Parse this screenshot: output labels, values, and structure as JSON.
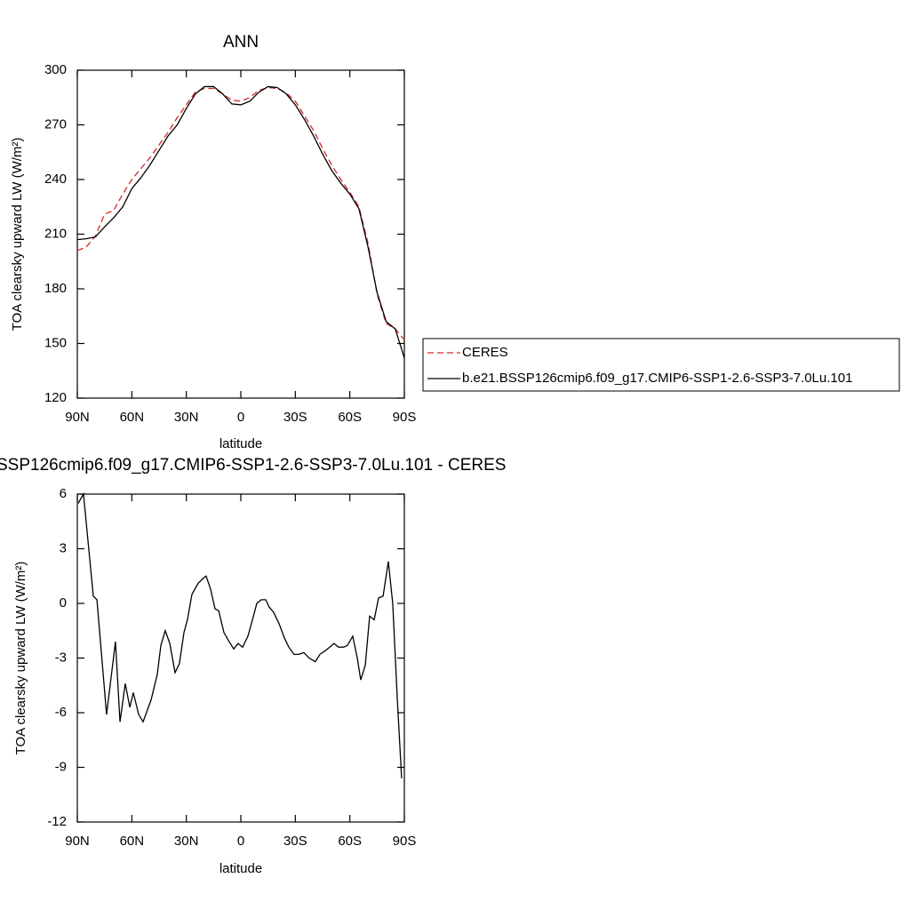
{
  "chart_data": [
    {
      "type": "line",
      "title": "ANN",
      "xlabel": "latitude",
      "ylabel": "TOA clearsky upward LW (W/m²)",
      "x": [
        90,
        85,
        80,
        75,
        70,
        65,
        60,
        55,
        50,
        45,
        40,
        35,
        30,
        25,
        20,
        15,
        10,
        5,
        0,
        -5,
        -10,
        -15,
        -20,
        -25,
        -30,
        -35,
        -40,
        -45,
        -50,
        -55,
        -60,
        -65,
        -70,
        -75,
        -80,
        -85,
        -90
      ],
      "series": [
        {
          "name": "CERES",
          "color": "#d62728",
          "dash": true,
          "values": [
            201,
            203,
            209,
            221,
            223,
            232,
            240,
            246,
            252,
            259,
            266,
            274,
            281,
            288,
            290,
            290,
            287,
            283.5,
            283,
            285,
            289,
            290.5,
            290,
            287.5,
            283,
            275,
            267,
            257,
            248,
            240,
            233,
            225,
            205,
            177,
            161,
            158,
            152
          ]
        },
        {
          "name": "b.e21.BSSP126cmip6.f09_g17.CMIP6-SSP1-2.6-SSP3-7.0Lu.101",
          "color": "#000000",
          "dash": false,
          "values": [
            207,
            207.5,
            208.5,
            214,
            219,
            225,
            235,
            241,
            248,
            256,
            264,
            270,
            279,
            287,
            291,
            291,
            287,
            281.5,
            281,
            283,
            288,
            291,
            290.5,
            287,
            281,
            273,
            264,
            254,
            245,
            238,
            232,
            224,
            203,
            178,
            162,
            158,
            142
          ]
        }
      ],
      "xlim": [
        90,
        -90
      ],
      "xticks": [
        {
          "value": 90,
          "label": "90N"
        },
        {
          "value": 60,
          "label": "60N"
        },
        {
          "value": 30,
          "label": "30N"
        },
        0,
        {
          "value": -30,
          "label": "30S"
        },
        {
          "value": -60,
          "label": "60S"
        },
        {
          "value": -90,
          "label": "90S"
        }
      ],
      "ylim": [
        120,
        300
      ],
      "yticks": [
        120,
        150,
        180,
        210,
        240,
        270,
        300
      ],
      "legend": "outside-right"
    },
    {
      "type": "line",
      "title": "SSP126cmip6.f09_g17.CMIP6-SSP1-2.6-SSP3-7.0Lu.101 - CERES",
      "xlabel": "latitude",
      "ylabel": "TOA clearsky upward LW (W/m²)",
      "x": [
        89.5,
        86.6,
        81.2,
        79.2,
        73.9,
        69,
        66.5,
        63.6,
        61.1,
        59.2,
        56.2,
        53.8,
        49.4,
        46,
        44,
        41.6,
        39.1,
        36.2,
        33.8,
        31.3,
        29.4,
        26.9,
        23.5,
        20.5,
        19.1,
        16.7,
        14.2,
        12.2,
        9.3,
        6.4,
        3.9,
        1.5,
        -1,
        -3.9,
        -6.4,
        -8.8,
        -11.2,
        -13.7,
        -15.6,
        -18.1,
        -21,
        -24,
        -26.4,
        -29.3,
        -31.8,
        -34.7,
        -37.6,
        -41,
        -43.5,
        -46.4,
        -48.9,
        -51.3,
        -53.8,
        -56.7,
        -58.7,
        -61.6,
        -64.1,
        -66,
        -68.5,
        -70.9,
        -73.4,
        -75.8,
        -78.3,
        -81.2,
        -83.6,
        -86.1,
        -88.5
      ],
      "values": [
        5.5,
        6,
        0.4,
        0.2,
        -6.1,
        -2.1,
        -6.5,
        -4.4,
        -5.7,
        -4.9,
        -6.1,
        -6.5,
        -5.3,
        -3.9,
        -2.3,
        -1.5,
        -2.2,
        -3.8,
        -3.3,
        -1.6,
        -0.9,
        0.5,
        1.1,
        1.4,
        1.5,
        0.8,
        -0.3,
        -0.4,
        -1.6,
        -2.1,
        -2.5,
        -2.2,
        -2.4,
        -1.8,
        -0.9,
        0,
        0.2,
        0.2,
        -0.2,
        -0.5,
        -1.1,
        -1.9,
        -2.4,
        -2.8,
        -2.8,
        -2.7,
        -3,
        -3.2,
        -2.8,
        -2.6,
        -2.4,
        -2.2,
        -2.4,
        -2.4,
        -2.3,
        -1.8,
        -3,
        -4.2,
        -3.4,
        -0.7,
        -0.9,
        0.3,
        0.4,
        2.3,
        0,
        -5.2,
        -9.6
      ],
      "color": "#000000",
      "xlim": [
        90,
        -90
      ],
      "xticks": [
        {
          "value": 90,
          "label": "90N"
        },
        {
          "value": 60,
          "label": "60N"
        },
        {
          "value": 30,
          "label": "30N"
        },
        0,
        {
          "value": -30,
          "label": "30S"
        },
        {
          "value": -60,
          "label": "60S"
        },
        {
          "value": -90,
          "label": "90S"
        }
      ],
      "ylim": [
        -12,
        6
      ],
      "yticks": [
        -12,
        -9,
        -6,
        -3,
        0,
        3,
        6
      ]
    }
  ]
}
